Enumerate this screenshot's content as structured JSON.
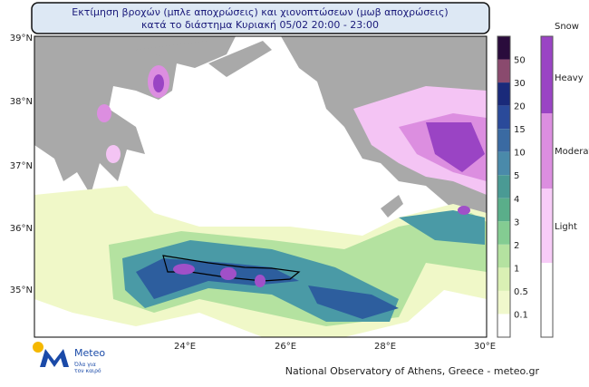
{
  "title": {
    "line1": "Εκτίμηση βροχών (μπλε αποχρώσεις) και χιονοπτώσεων (μωβ αποχρώσεις)",
    "line2": "κατά το διάστημα Κυριακή 05/02 20:00 - 23:00"
  },
  "axes": {
    "lat": [
      "39°N",
      "38°N",
      "37°N",
      "36°N",
      "35°N"
    ],
    "lon": [
      "24°E",
      "26°E",
      "28°E",
      "30°E"
    ]
  },
  "rain_scale": {
    "labels": [
      "50",
      "30",
      "20",
      "15",
      "10",
      "5",
      "4",
      "3",
      "2",
      "1",
      "0.5",
      "0.1"
    ]
  },
  "snow_scale": {
    "title": "Snow",
    "labels": [
      "Heavy",
      "Moderate",
      "Light"
    ]
  },
  "logo": {
    "name": "Meteo",
    "tagline": [
      "Όλα για",
      "τον καιρό"
    ]
  },
  "footer": "National Observatory of Athens, Greece - meteo.gr"
}
